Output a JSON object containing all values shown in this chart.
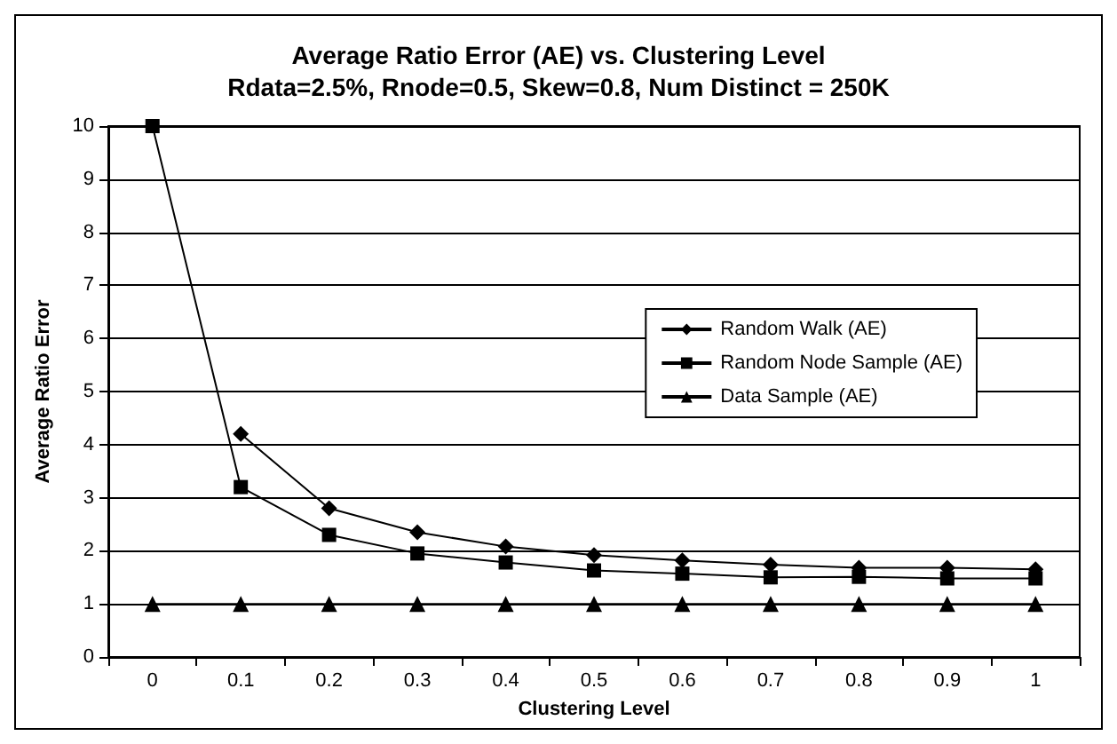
{
  "chart_data": {
    "type": "line",
    "title": "Average Ratio Error (AE) vs. Clustering Level",
    "subtitle": "Rdata=2.5%, Rnode=0.5, Skew=0.8, Num Distinct = 250K",
    "xlabel": "Clustering Level",
    "ylabel": "Average Ratio Error",
    "categories": [
      "0",
      "0.1",
      "0.2",
      "0.3",
      "0.4",
      "0.5",
      "0.6",
      "0.7",
      "0.8",
      "0.9",
      "1"
    ],
    "series": [
      {
        "name": "Random Walk (AE)",
        "color": "#000000",
        "marker": "diamond",
        "values": [
          null,
          4.2,
          2.8,
          2.35,
          2.08,
          1.92,
          1.82,
          1.74,
          1.68,
          1.68,
          1.65
        ]
      },
      {
        "name": "Random Node Sample (AE)",
        "color": "#000000",
        "marker": "square",
        "values": [
          10,
          3.2,
          2.3,
          1.95,
          1.78,
          1.63,
          1.57,
          1.5,
          1.51,
          1.48,
          1.48
        ]
      },
      {
        "name": "Data Sample (AE)",
        "color": "#000000",
        "marker": "triangle",
        "values": [
          1,
          1,
          1,
          1,
          1,
          1,
          1,
          1,
          1,
          1,
          1
        ]
      }
    ],
    "ylim": [
      0,
      10
    ],
    "yticks": [
      0,
      1,
      2,
      3,
      4,
      5,
      6,
      7,
      8,
      9,
      10
    ],
    "grid": "y",
    "legend": "right"
  }
}
